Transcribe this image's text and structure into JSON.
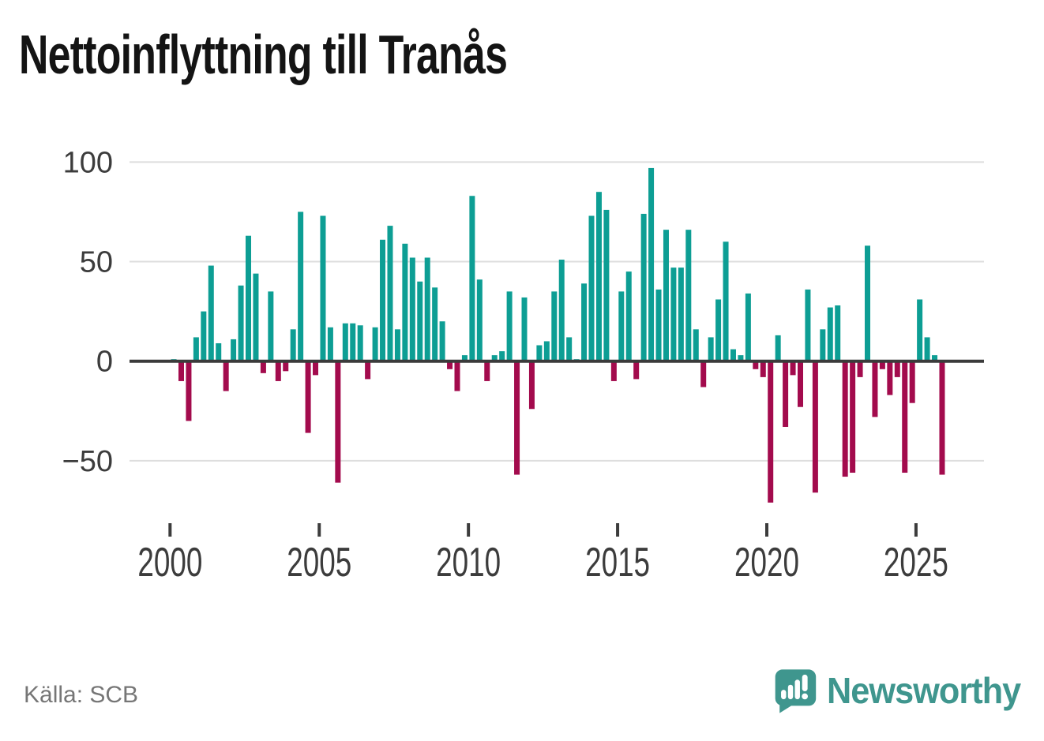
{
  "title": "Nettoinflyttning till Tranås",
  "source": "Källa: SCB",
  "branding": {
    "name": "Newsworthy"
  },
  "colors": {
    "positive": "#0D9E94",
    "negative": "#A30B4D",
    "grid": "#DEDEDE",
    "zero_line": "#3B3B3B",
    "axis_text": "#3C3C3C",
    "title_text": "#141414",
    "source_text": "#767676",
    "brand": "#3F968E"
  },
  "chart_data": {
    "type": "bar",
    "title": "Nettoinflyttning till Tranås",
    "xlabel": "",
    "ylabel": "",
    "frequency": "quarterly",
    "start_year": 2000,
    "values": [
      1,
      -10,
      -30,
      12,
      25,
      48,
      9,
      -15,
      11,
      38,
      63,
      44,
      -6,
      35,
      -10,
      -5,
      16,
      75,
      -36,
      -7,
      73,
      17,
      -61,
      19,
      19,
      18,
      -9,
      17,
      61,
      68,
      16,
      59,
      52,
      40,
      52,
      37,
      20,
      -4,
      -15,
      3,
      83,
      41,
      -10,
      3,
      5,
      35,
      -57,
      32,
      -24,
      8,
      10,
      35,
      51,
      12,
      1,
      39,
      73,
      85,
      76,
      -10,
      35,
      45,
      -9,
      74,
      97,
      36,
      66,
      47,
      47,
      66,
      16,
      -13,
      12,
      31,
      60,
      6,
      3,
      34,
      -4,
      -8,
      -71,
      13,
      -33,
      -7,
      -23,
      36,
      -66,
      16,
      27,
      28,
      -58,
      -56,
      -8,
      58,
      -28,
      -4,
      -17,
      -8,
      -56,
      -21,
      31,
      12,
      3,
      -57
    ],
    "x_tick_labels": [
      "2000",
      "2005",
      "2010",
      "2015",
      "2020",
      "2025"
    ],
    "y_ticks": [
      100,
      50,
      0,
      -50
    ],
    "ylim": [
      -75,
      105
    ],
    "grid": true,
    "legend": "none",
    "positive_color": "#0D9E94",
    "negative_color": "#A30B4D"
  }
}
